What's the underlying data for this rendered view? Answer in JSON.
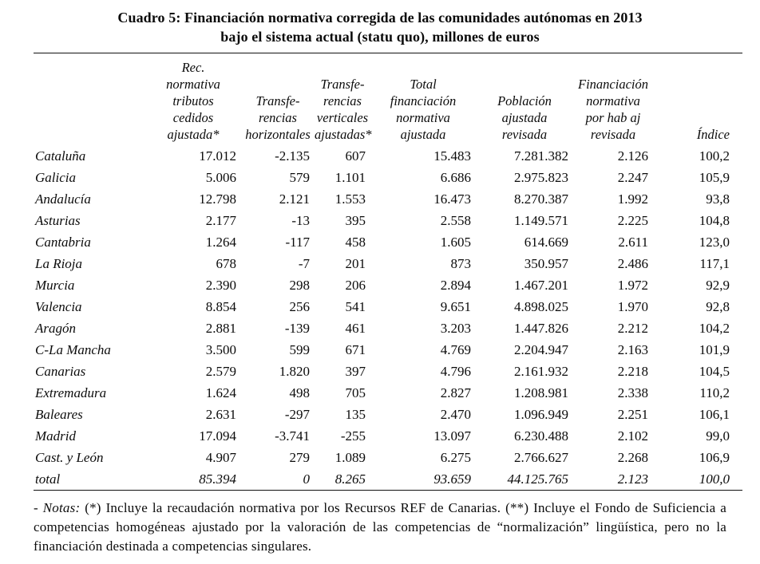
{
  "title": {
    "line1": "Cuadro 5: Financiación normativa corregida de las comunidades autónomas en 2013",
    "line2": "bajo el sistema actual (statu quo), millones de euros"
  },
  "table": {
    "columns": [
      {
        "name": "region",
        "lines": []
      },
      {
        "name": "rec-normativa-tributos-cedidos-ajustada",
        "lines": [
          "Rec.",
          "normativa",
          "tributos",
          "cedidos",
          "ajustada*"
        ]
      },
      {
        "name": "transferencias-horizontales",
        "lines": [
          "Transfe-",
          "rencias",
          "horizontales"
        ]
      },
      {
        "name": "transferencias-verticales-ajustadas",
        "lines": [
          "Transfe-",
          "rencias",
          "verticales",
          "ajustadas*"
        ]
      },
      {
        "name": "total-financiacion-normativa-ajustada",
        "lines": [
          "Total",
          "financiación",
          "normativa",
          "ajustada"
        ]
      },
      {
        "name": "poblacion-ajustada-revisada",
        "lines": [
          "Población",
          "ajustada",
          "revisada"
        ]
      },
      {
        "name": "financiacion-normativa-por-hab-aj-revisada",
        "lines": [
          "Financiación",
          "normativa",
          "por hab aj",
          "revisada"
        ]
      },
      {
        "name": "indice",
        "lines": [
          "Índice"
        ]
      }
    ],
    "rows": [
      [
        "Cataluña",
        "17.012",
        "-2.135",
        "607",
        "15.483",
        "7.281.382",
        "2.126",
        "100,2"
      ],
      [
        "Galicia",
        "5.006",
        "579",
        "1.101",
        "6.686",
        "2.975.823",
        "2.247",
        "105,9"
      ],
      [
        "Andalucía",
        "12.798",
        "2.121",
        "1.553",
        "16.473",
        "8.270.387",
        "1.992",
        "93,8"
      ],
      [
        "Asturias",
        "2.177",
        "-13",
        "395",
        "2.558",
        "1.149.571",
        "2.225",
        "104,8"
      ],
      [
        "Cantabria",
        "1.264",
        "-117",
        "458",
        "1.605",
        "614.669",
        "2.611",
        "123,0"
      ],
      [
        "La Rioja",
        "678",
        "-7",
        "201",
        "873",
        "350.957",
        "2.486",
        "117,1"
      ],
      [
        "Murcia",
        "2.390",
        "298",
        "206",
        "2.894",
        "1.467.201",
        "1.972",
        "92,9"
      ],
      [
        "Valencia",
        "8.854",
        "256",
        "541",
        "9.651",
        "4.898.025",
        "1.970",
        "92,8"
      ],
      [
        "Aragón",
        "2.881",
        "-139",
        "461",
        "3.203",
        "1.447.826",
        "2.212",
        "104,2"
      ],
      [
        "C-La Mancha",
        "3.500",
        "599",
        "671",
        "4.769",
        "2.204.947",
        "2.163",
        "101,9"
      ],
      [
        "Canarias",
        "2.579",
        "1.820",
        "397",
        "4.796",
        "2.161.932",
        "2.218",
        "104,5"
      ],
      [
        "Extremadura",
        "1.624",
        "498",
        "705",
        "2.827",
        "1.208.981",
        "2.338",
        "110,2"
      ],
      [
        "Baleares",
        "2.631",
        "-297",
        "135",
        "2.470",
        "1.096.949",
        "2.251",
        "106,1"
      ],
      [
        "Madrid",
        "17.094",
        "-3.741",
        "-255",
        "13.097",
        "6.230.488",
        "2.102",
        "99,0"
      ],
      [
        "Cast. y León",
        "4.907",
        "279",
        "1.089",
        "6.275",
        "2.766.627",
        "2.268",
        "106,9"
      ]
    ],
    "total_row": [
      "total",
      "85.394",
      "0",
      "8.265",
      "93.659",
      "44.125.765",
      "2.123",
      "100,0"
    ]
  },
  "notes": {
    "label": "- Notas:",
    "text": "(*) Incluye la recaudación normativa por los Recursos REF de Canarias. (**) Incluye el Fondo de Suficiencia a competencias homogéneas ajustado por la valoración de las competencias de “normalización” lingüística, pero no la financiación destinada a competencias singulares."
  }
}
